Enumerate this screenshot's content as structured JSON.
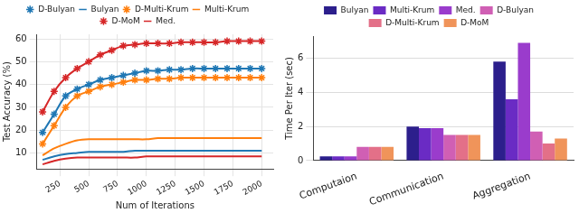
{
  "chart_data": [
    {
      "type": "line",
      "x_label": "Num of Iterations",
      "y_label": "Test Accuracy (%)",
      "x": [
        100,
        200,
        300,
        400,
        500,
        600,
        700,
        800,
        900,
        1000,
        1100,
        1200,
        1300,
        1400,
        1500,
        1600,
        1700,
        1800,
        1900,
        2000
      ],
      "xlim": [
        50,
        2100
      ],
      "xticks": [
        250,
        500,
        750,
        1000,
        1250,
        1500,
        1750,
        2000
      ],
      "ylim": [
        3,
        62
      ],
      "yticks": [
        10,
        20,
        30,
        40,
        50,
        60
      ],
      "grid": true,
      "legend": "top",
      "series": [
        {
          "name": "D-Bulyan",
          "color": "#1f77b4",
          "marker": "star",
          "values": [
            19,
            27,
            35,
            38,
            40,
            42,
            43,
            44,
            45,
            46,
            46,
            46.5,
            46.5,
            47,
            47,
            47,
            47,
            47,
            47,
            47
          ]
        },
        {
          "name": "Bulyan",
          "color": "#1f77b4",
          "marker": "none",
          "values": [
            7,
            8.5,
            9.5,
            10,
            10.5,
            10.5,
            10.5,
            10.5,
            11,
            11,
            11,
            11,
            11,
            11,
            11,
            11,
            11,
            11,
            11,
            11
          ]
        },
        {
          "name": "D-Multi-Krum",
          "color": "#ff7f0e",
          "marker": "star",
          "values": [
            14,
            22,
            30,
            35,
            37,
            39,
            40,
            41,
            42,
            42,
            42.5,
            42.5,
            43,
            43,
            43,
            43,
            43,
            43,
            43,
            43
          ]
        },
        {
          "name": "Multi-Krum",
          "color": "#ff7f0e",
          "marker": "none",
          "values": [
            9,
            12,
            14,
            15.5,
            16,
            16,
            16,
            16,
            16,
            16,
            16.5,
            16.5,
            16.5,
            16.5,
            16.5,
            16.5,
            16.5,
            16.5,
            16.5,
            16.5
          ]
        },
        {
          "name": "D-MoM",
          "color": "#d62728",
          "marker": "star",
          "values": [
            28,
            37,
            43,
            47,
            50,
            53,
            55,
            57,
            57.5,
            58,
            58,
            58,
            58.5,
            58.5,
            58.5,
            58.5,
            59,
            59,
            59,
            59
          ]
        },
        {
          "name": "Med.",
          "color": "#d62728",
          "marker": "none",
          "values": [
            5,
            6.5,
            7.5,
            8,
            8,
            8,
            8,
            8,
            8,
            8.5,
            8.5,
            8.5,
            8.5,
            8.5,
            8.5,
            8.5,
            8.5,
            8.5,
            8.5,
            8.5
          ]
        }
      ]
    },
    {
      "type": "bar",
      "y_label": "Time Per Iter (sec)",
      "categories": [
        "Computaion",
        "Communication",
        "Aggregation"
      ],
      "ylim": [
        0,
        7.3
      ],
      "yticks": [
        0,
        2,
        4,
        6
      ],
      "grid": true,
      "legend": "top",
      "series": [
        {
          "name": "Bulyan",
          "color": "#2c1f8c",
          "values": [
            0.25,
            2.0,
            5.8
          ]
        },
        {
          "name": "Multi-Krum",
          "color": "#6a2bc4",
          "values": [
            0.25,
            1.9,
            3.6
          ]
        },
        {
          "name": "Med.",
          "color": "#9a3ccc",
          "values": [
            0.25,
            1.9,
            6.9
          ]
        },
        {
          "name": "D-Bulyan",
          "color": "#d05fb4",
          "values": [
            0.8,
            1.5,
            1.7
          ]
        },
        {
          "name": "D-Multi-Krum",
          "color": "#e37088",
          "values": [
            0.8,
            1.5,
            1.0
          ]
        },
        {
          "name": "D-MoM",
          "color": "#f0945a",
          "values": [
            0.8,
            1.5,
            1.3
          ]
        }
      ]
    }
  ]
}
